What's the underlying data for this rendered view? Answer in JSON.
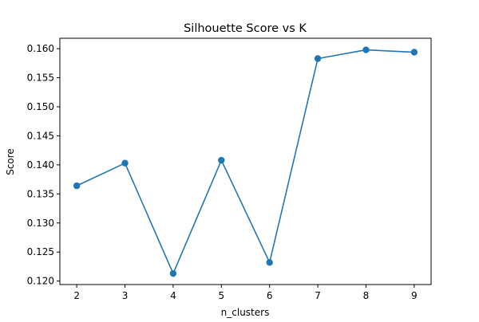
{
  "chart_data": {
    "type": "line",
    "title": "Silhouette Score vs K",
    "xlabel": "n_clusters",
    "ylabel": "Score",
    "x": [
      2,
      3,
      4,
      5,
      6,
      7,
      8,
      9
    ],
    "series": [
      {
        "values": [
          0.1364,
          0.1403,
          0.1213,
          0.1408,
          0.1232,
          0.1583,
          0.1598,
          0.1594
        ],
        "color": "#1f77b4",
        "marker": "circle"
      }
    ],
    "xlim": [
      1.65,
      9.35
    ],
    "ylim": [
      0.1194,
      0.1618
    ],
    "xticks": [
      "2",
      "3",
      "4",
      "5",
      "6",
      "7",
      "8",
      "9"
    ],
    "yticks": [
      "0.120",
      "0.125",
      "0.130",
      "0.135",
      "0.140",
      "0.145",
      "0.150",
      "0.155",
      "0.160"
    ],
    "grid": false,
    "legend": "none"
  }
}
